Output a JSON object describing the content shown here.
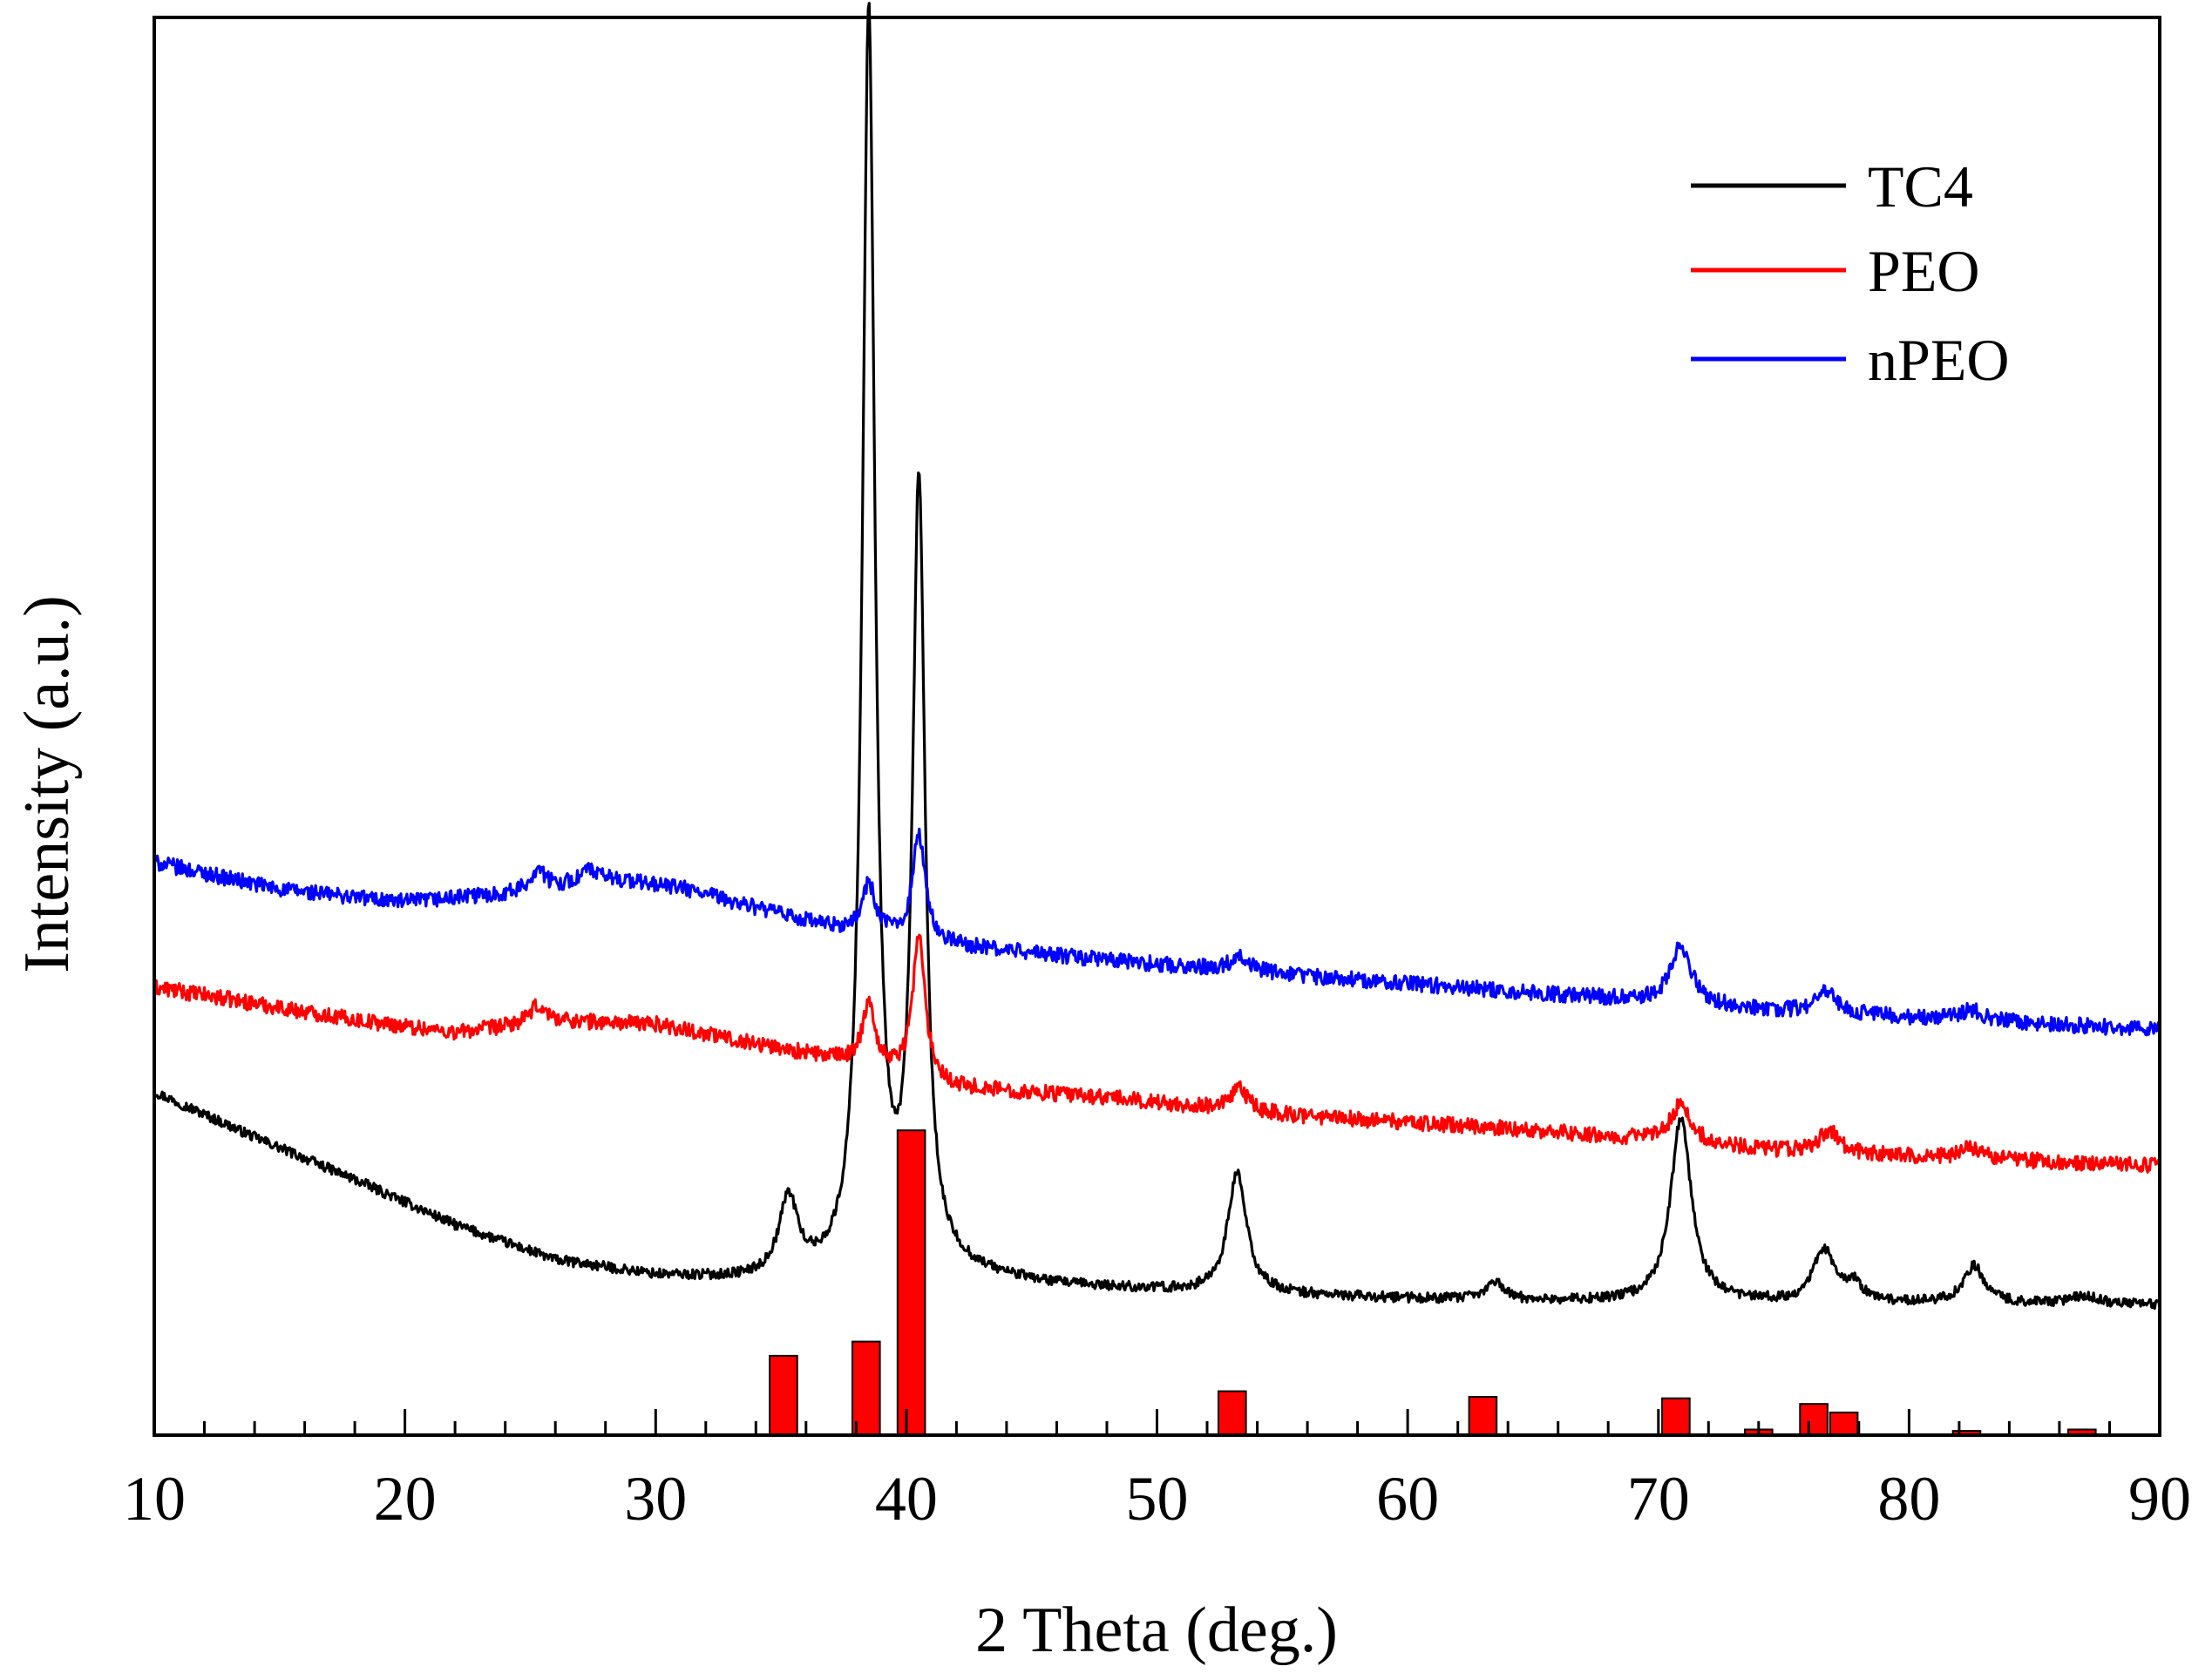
{
  "chart_data": {
    "type": "line",
    "title": "",
    "xlabel": "2 Theta (deg.)",
    "ylabel": "Intensity (a.u.)",
    "xlim": [
      10,
      90
    ],
    "ylim": [
      0,
      100
    ],
    "y_ticks_shown": false,
    "x_ticks": [
      10,
      20,
      30,
      40,
      50,
      60,
      70,
      80,
      90
    ],
    "x_tick_labels": [
      "10",
      "20",
      "30",
      "40",
      "50",
      "60",
      "70",
      "80",
      "90"
    ],
    "legend": {
      "position": "top-right",
      "entries": [
        "TC4",
        "PEO",
        "nPEO"
      ]
    },
    "series": [
      {
        "name": "TC4",
        "color": "#000000",
        "baseline": [
          [
            10,
            24.2
          ],
          [
            14,
            21.0
          ],
          [
            18,
            18.0
          ],
          [
            22,
            14.8
          ],
          [
            26,
            12.3
          ],
          [
            30,
            11.2
          ],
          [
            34,
            10.8
          ],
          [
            38,
            10.8
          ],
          [
            42,
            11.3
          ],
          [
            46,
            10.5
          ],
          [
            52,
            10.0
          ],
          [
            60,
            9.6
          ],
          [
            70,
            9.3
          ],
          [
            80,
            9.3
          ],
          [
            90,
            9.2
          ]
        ],
        "peaks": [
          {
            "x": 35.3,
            "height": 5.5,
            "width": 0.45
          },
          {
            "x": 38.5,
            "height": 89.0,
            "width": 0.3
          },
          {
            "x": 40.5,
            "height": 55.0,
            "width": 0.3
          },
          {
            "x": 53.2,
            "height": 8.5,
            "width": 0.45
          },
          {
            "x": 63.5,
            "height": 1.3,
            "width": 0.4
          },
          {
            "x": 70.9,
            "height": 13.0,
            "width": 0.5
          },
          {
            "x": 76.6,
            "height": 3.7,
            "width": 0.5
          },
          {
            "x": 77.8,
            "height": 1.2,
            "width": 0.4
          },
          {
            "x": 82.6,
            "height": 2.6,
            "width": 0.5
          },
          {
            "x": 87.0,
            "height": 0.6,
            "width": 0.6
          }
        ],
        "noise": 0.35
      },
      {
        "name": "PEO",
        "color": "#ff0000",
        "baseline": [
          [
            10,
            31.6
          ],
          [
            18,
            29.3
          ],
          [
            22,
            28.4
          ],
          [
            26,
            29.2
          ],
          [
            30,
            29.0
          ],
          [
            34,
            27.6
          ],
          [
            38,
            26.2
          ],
          [
            42,
            24.5
          ],
          [
            48,
            23.8
          ],
          [
            55,
            22.6
          ],
          [
            65,
            21.5
          ],
          [
            75,
            20.0
          ],
          [
            90,
            19.0
          ]
        ],
        "peaks": [
          {
            "x": 25.3,
            "height": 1.2,
            "width": 0.4
          },
          {
            "x": 38.5,
            "height": 4.5,
            "width": 0.3
          },
          {
            "x": 40.5,
            "height": 10.0,
            "width": 0.3
          },
          {
            "x": 53.3,
            "height": 1.5,
            "width": 0.4
          },
          {
            "x": 70.9,
            "height": 2.7,
            "width": 0.5
          },
          {
            "x": 76.8,
            "height": 1.6,
            "width": 0.5
          },
          {
            "x": 82.5,
            "height": 0.8,
            "width": 0.5
          }
        ],
        "noise": 0.55
      },
      {
        "name": "nPEO",
        "color": "#0000ff",
        "baseline": [
          [
            10,
            40.4
          ],
          [
            15,
            38.5
          ],
          [
            20,
            37.6
          ],
          [
            24,
            38.2
          ],
          [
            28,
            39.3
          ],
          [
            31,
            38.6
          ],
          [
            34,
            37.2
          ],
          [
            37,
            35.8
          ],
          [
            42,
            34.5
          ],
          [
            48,
            33.5
          ],
          [
            55,
            32.5
          ],
          [
            65,
            31.2
          ],
          [
            75,
            29.9
          ],
          [
            90,
            28.6
          ]
        ],
        "peaks": [
          {
            "x": 25.3,
            "height": 1.5,
            "width": 0.3
          },
          {
            "x": 27.3,
            "height": 0.8,
            "width": 0.3
          },
          {
            "x": 38.5,
            "height": 3.5,
            "width": 0.3
          },
          {
            "x": 40.5,
            "height": 7.5,
            "width": 0.3
          },
          {
            "x": 53.3,
            "height": 1.2,
            "width": 0.4
          },
          {
            "x": 70.9,
            "height": 4.0,
            "width": 0.5
          },
          {
            "x": 76.7,
            "height": 1.5,
            "width": 0.5
          },
          {
            "x": 82.5,
            "height": 0.8,
            "width": 0.5
          }
        ],
        "noise": 0.55
      }
    ],
    "reference_bars": {
      "color": "#ff0000",
      "edge_color": "#000000",
      "x": [
        35.1,
        38.4,
        40.2,
        53.0,
        63.0,
        70.7,
        76.2,
        77.4,
        74.0,
        82.3,
        86.9
      ],
      "values": [
        5.6,
        6.6,
        21.5,
        3.1,
        2.7,
        2.6,
        2.2,
        1.6,
        0.4,
        0.3,
        0.4
      ]
    }
  }
}
